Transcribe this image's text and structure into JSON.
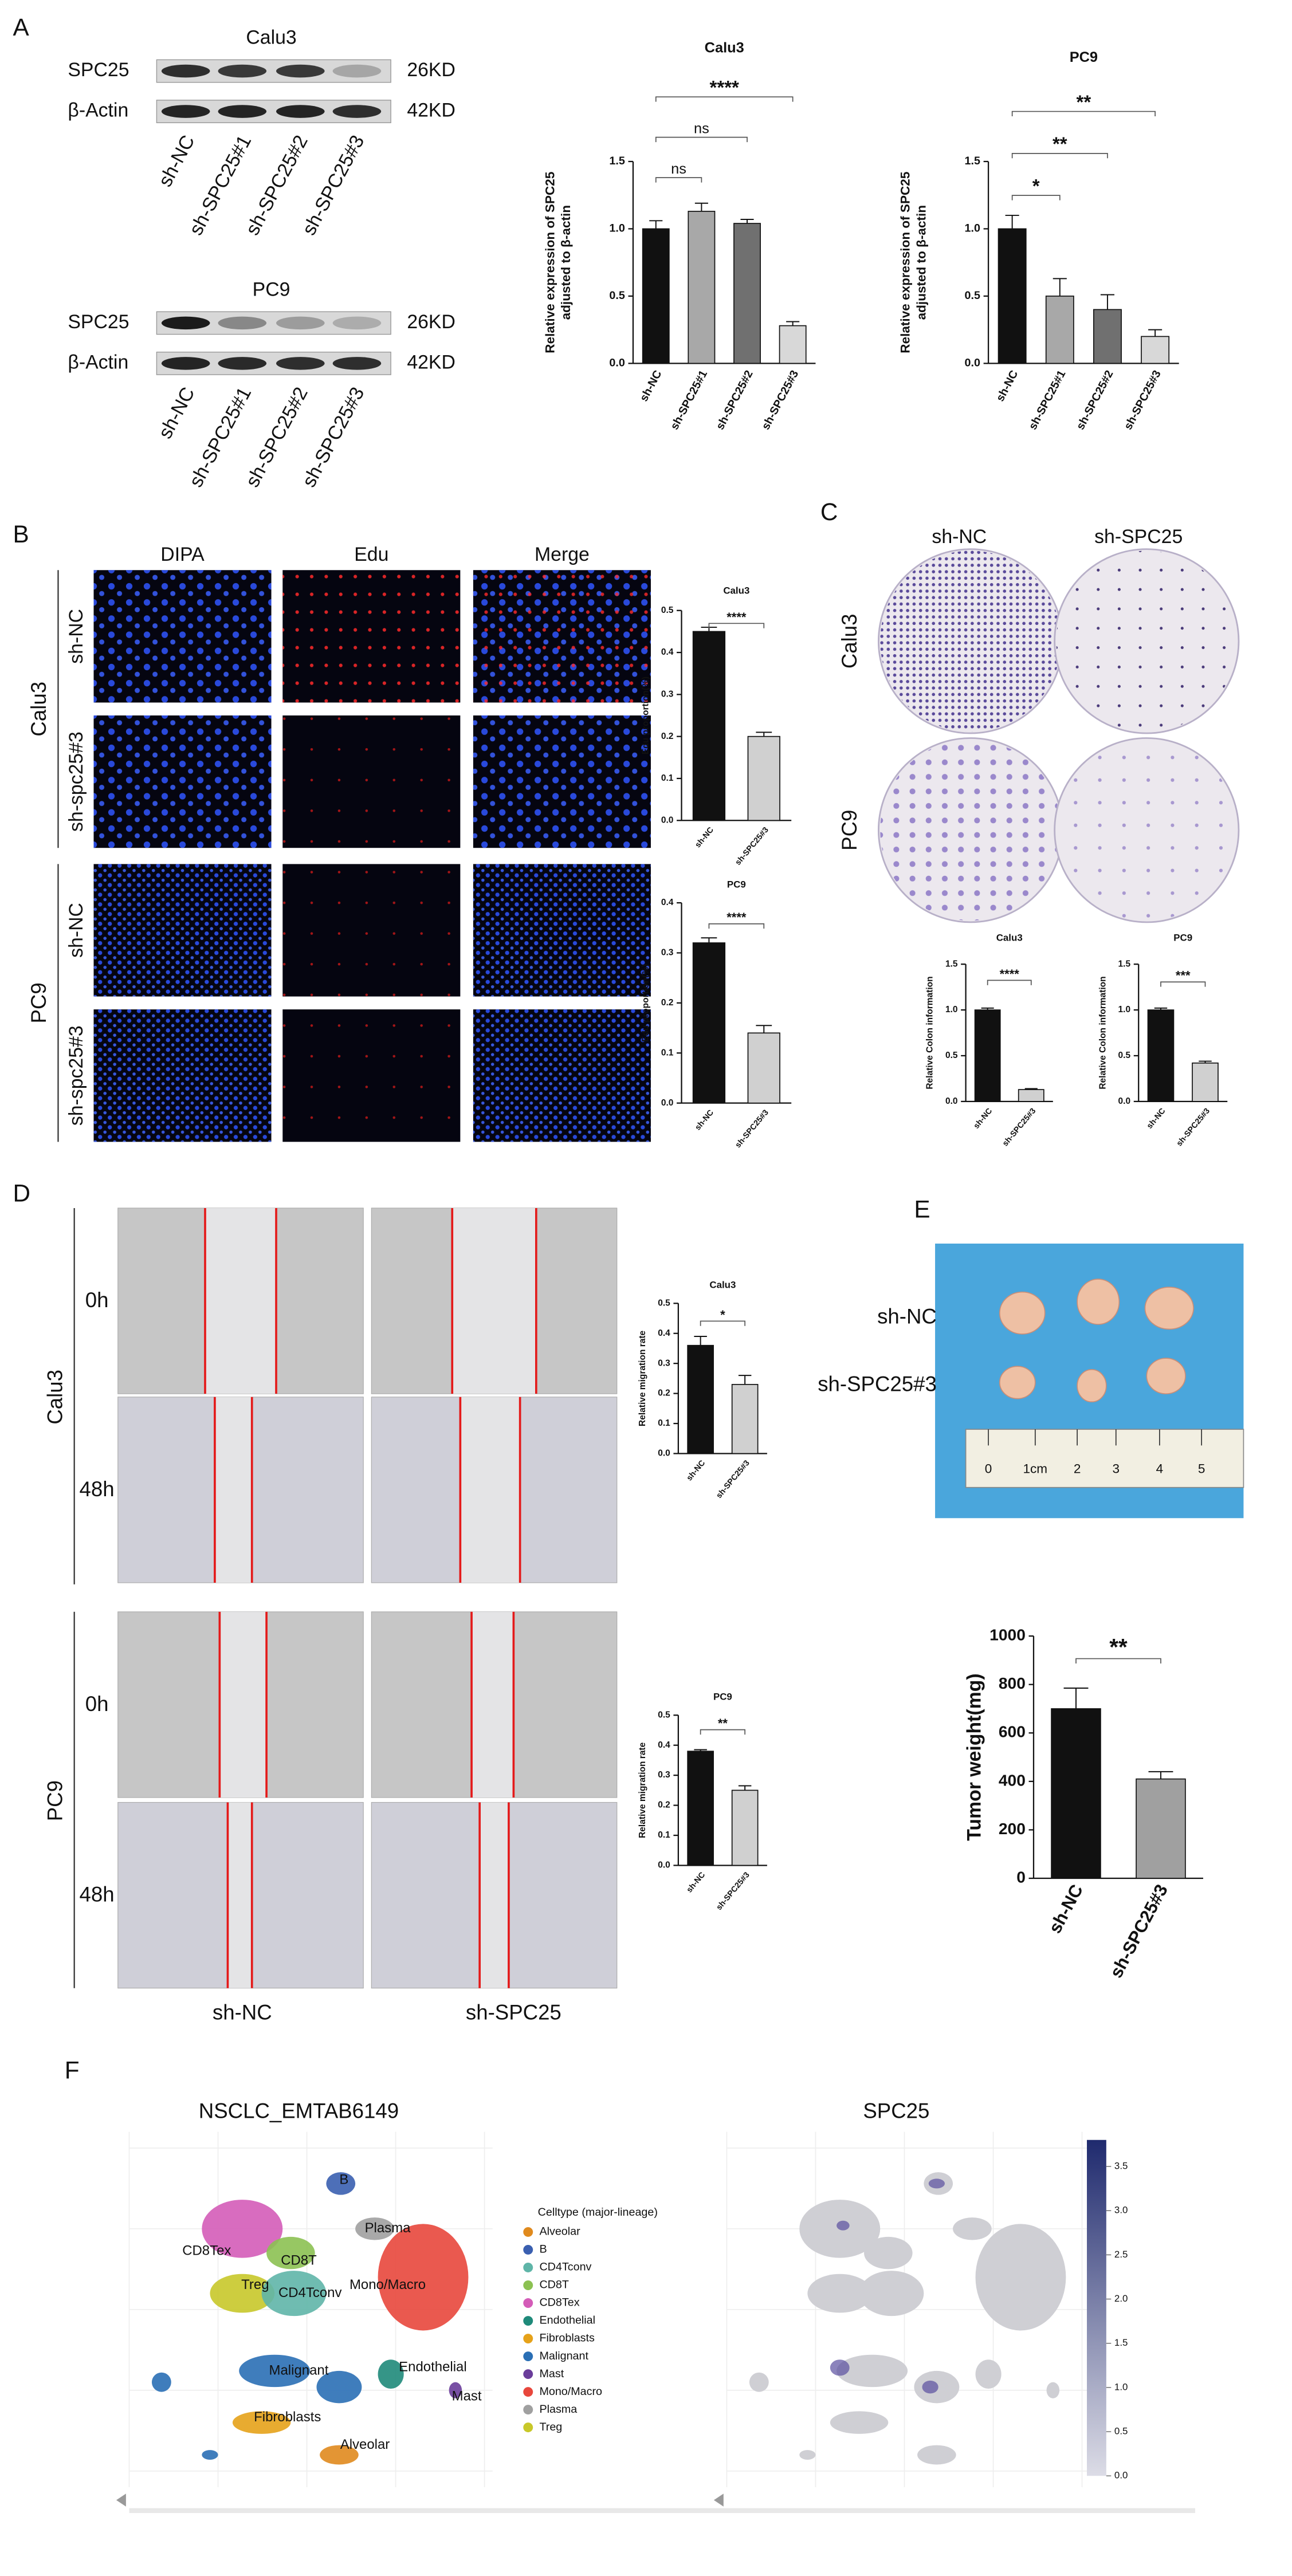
{
  "panel_labels": [
    "A",
    "B",
    "C",
    "D",
    "E",
    "F"
  ],
  "western_blot": [
    {
      "title": "Calu3",
      "bands": [
        {
          "protein": "SPC25",
          "size": "26KD"
        },
        {
          "protein": "β-Actin",
          "size": "42KD"
        }
      ],
      "lanes": [
        "sh-NC",
        "sh-SPC25#1",
        "sh-SPC25#2",
        "sh-SPC25#3"
      ]
    },
    {
      "title": "PC9",
      "bands": [
        {
          "protein": "SPC25",
          "size": "26KD"
        },
        {
          "protein": "β-Actin",
          "size": "42KD"
        }
      ],
      "lanes": [
        "sh-NC",
        "sh-SPC25#1",
        "sh-SPC25#2",
        "sh-SPC25#3"
      ]
    }
  ],
  "edu_imaging": {
    "channels": [
      "DIPA",
      "Edu",
      "Merge"
    ],
    "groups": [
      {
        "name": "Calu3",
        "rows": [
          "sh-NC",
          "sh-spc25#3"
        ]
      },
      {
        "name": "PC9",
        "rows": [
          "sh-NC",
          "sh-spc25#3"
        ]
      }
    ]
  },
  "colony_assay": {
    "columns": [
      "sh-NC",
      "sh-SPC25"
    ],
    "rows": [
      "Calu3",
      "PC9"
    ]
  },
  "wound_healing": {
    "columns": [
      "sh-NC",
      "sh-SPC25"
    ],
    "groups": [
      {
        "name": "Calu3",
        "rows": [
          "0h",
          "48h"
        ]
      },
      {
        "name": "PC9",
        "rows": [
          "0h",
          "48h"
        ]
      }
    ]
  },
  "xenograft": {
    "rows": [
      "sh-NC",
      "sh-SPC25#3"
    ],
    "ruler": [
      "0",
      "1cm",
      "2",
      "3",
      "4",
      "5"
    ]
  },
  "single_cell": {
    "left_title": "NSCLC_EMTAB6149",
    "right_title": "SPC25",
    "legend_title": "Celltype (major-lineage)",
    "celltypes": [
      {
        "name": "Alveolar",
        "color": "#e08a1e"
      },
      {
        "name": "B",
        "color": "#3a5fb0"
      },
      {
        "name": "CD4Tconv",
        "color": "#5fb5a8"
      },
      {
        "name": "CD8T",
        "color": "#8cc152"
      },
      {
        "name": "CD8Tex",
        "color": "#d45cb8"
      },
      {
        "name": "Endothelial",
        "color": "#1f8a7a"
      },
      {
        "name": "Fibroblasts",
        "color": "#e6a21a"
      },
      {
        "name": "Malignant",
        "color": "#2a6fb5"
      },
      {
        "name": "Mast",
        "color": "#6a3d9a"
      },
      {
        "name": "Mono/Macro",
        "color": "#e8473c"
      },
      {
        "name": "Plasma",
        "color": "#a0a0a0"
      },
      {
        "name": "Treg",
        "color": "#c8c82a"
      }
    ],
    "cluster_labels": [
      "B",
      "Plasma",
      "CD8Tex",
      "CD8T",
      "Treg",
      "CD4Tconv",
      "Mono/Macro",
      "Malignant",
      "Endothelial",
      "Mast",
      "Fibroblasts",
      "Alveolar"
    ],
    "colorbar": {
      "lim": [
        0,
        3.8
      ],
      "ticks": [
        {
          "value": 0,
          "label": "0.0"
        },
        0.5,
        {
          "value": 1,
          "label": "1.0"
        },
        1.5,
        {
          "value": 2,
          "label": "2.0"
        },
        2.5,
        {
          "value": 3,
          "label": "3.0"
        },
        3.5
      ]
    }
  },
  "chart_data": [
    {
      "type": "bar",
      "title": "Calu3",
      "ylabel": [
        "Relative expression of SPC25",
        "adjusted to β-actin"
      ],
      "categories": [
        "sh-NC",
        "sh-SPC25#1",
        "sh-SPC25#2",
        "sh-SPC25#3"
      ],
      "values": [
        1.0,
        1.13,
        1.04,
        0.28
      ],
      "errors": [
        0.06,
        0.06,
        0.03,
        0.03
      ],
      "colors": [
        "#111111",
        "#a8a8a8",
        "#707070",
        "#d8d8d8"
      ],
      "ylim": [
        0,
        1.5
      ],
      "yticks": [
        {
          "value": 0,
          "label": "0.0"
        },
        0.5,
        {
          "value": 1,
          "label": "1.0"
        },
        1.5
      ],
      "annotations": [
        {
          "text": "ns",
          "between": [
            "sh-NC",
            "sh-SPC25#1"
          ]
        },
        {
          "text": "ns",
          "between": [
            "sh-NC",
            "sh-SPC25#2"
          ]
        },
        {
          "text": "****",
          "between": [
            "sh-NC",
            "sh-SPC25#3"
          ]
        }
      ]
    },
    {
      "type": "bar",
      "title": "PC9",
      "ylabel": [
        "Relative expression of SPC25",
        "adjusted to β-actin"
      ],
      "categories": [
        "sh-NC",
        "sh-SPC25#1",
        "sh-SPC25#2",
        "sh-SPC25#3"
      ],
      "values": [
        1.0,
        0.5,
        0.4,
        0.2
      ],
      "errors": [
        0.1,
        0.13,
        0.11,
        0.05
      ],
      "colors": [
        "#111111",
        "#a8a8a8",
        "#707070",
        "#d8d8d8"
      ],
      "ylim": [
        0,
        1.5
      ],
      "yticks": [
        {
          "value": 0,
          "label": "0.0"
        },
        0.5,
        {
          "value": 1,
          "label": "1.0"
        },
        1.5
      ],
      "annotations": [
        {
          "text": "*",
          "between": [
            "sh-NC",
            "sh-SPC25#1"
          ]
        },
        {
          "text": "**",
          "between": [
            "sh-NC",
            "sh-SPC25#2"
          ]
        },
        {
          "text": "**",
          "between": [
            "sh-NC",
            "sh-SPC25#3"
          ]
        }
      ]
    },
    {
      "type": "bar",
      "title": "Calu3",
      "ylabel": [
        "Edu proportion(%)"
      ],
      "categories": [
        "sh-NC",
        "sh-SPC25#3"
      ],
      "values": [
        0.45,
        0.2
      ],
      "errors": [
        0.01,
        0.01
      ],
      "colors": [
        "#111111",
        "#d0d0d0"
      ],
      "ylim": [
        0,
        0.5
      ],
      "yticks": [
        {
          "value": 0,
          "label": "0.0"
        },
        0.1,
        0.2,
        0.3,
        0.4,
        0.5
      ],
      "annotations": [
        {
          "text": "****",
          "between": [
            "sh-NC",
            "sh-SPC25#3"
          ]
        }
      ]
    },
    {
      "type": "bar",
      "title": "PC9",
      "ylabel": [
        "Edu proportion(%)"
      ],
      "categories": [
        "sh-NC",
        "sh-SPC25#3"
      ],
      "values": [
        0.32,
        0.14
      ],
      "errors": [
        0.01,
        0.015
      ],
      "colors": [
        "#111111",
        "#d0d0d0"
      ],
      "ylim": [
        0,
        0.4
      ],
      "yticks": [
        {
          "value": 0,
          "label": "0.0"
        },
        0.1,
        0.2,
        0.3,
        0.4
      ],
      "annotations": [
        {
          "text": "****",
          "between": [
            "sh-NC",
            "sh-SPC25#3"
          ]
        }
      ]
    },
    {
      "type": "bar",
      "title": "Calu3",
      "ylabel": [
        "Relative Colon information"
      ],
      "categories": [
        "sh-NC",
        "sh-SPC25#3"
      ],
      "values": [
        1.0,
        0.13
      ],
      "errors": [
        0.02,
        0.01
      ],
      "colors": [
        "#111111",
        "#d0d0d0"
      ],
      "ylim": [
        0,
        1.5
      ],
      "yticks": [
        {
          "value": 0,
          "label": "0.0"
        },
        0.5,
        {
          "value": 1,
          "label": "1.0"
        },
        1.5
      ],
      "annotations": [
        {
          "text": "****",
          "between": [
            "sh-NC",
            "sh-SPC25#3"
          ]
        }
      ]
    },
    {
      "type": "bar",
      "title": "PC9",
      "ylabel": [
        "Relative Colon information"
      ],
      "categories": [
        "sh-NC",
        "sh-SPC25#3"
      ],
      "values": [
        1.0,
        0.42
      ],
      "errors": [
        0.02,
        0.02
      ],
      "colors": [
        "#111111",
        "#d0d0d0"
      ],
      "ylim": [
        0,
        1.5
      ],
      "yticks": [
        {
          "value": 0,
          "label": "0.0"
        },
        0.5,
        {
          "value": 1,
          "label": "1.0"
        },
        1.5
      ],
      "annotations": [
        {
          "text": "***",
          "between": [
            "sh-NC",
            "sh-SPC25#3"
          ]
        }
      ]
    },
    {
      "type": "bar",
      "title": "Calu3",
      "ylabel": [
        "Relative migration rate"
      ],
      "categories": [
        "sh-NC",
        "sh-SPC25#3"
      ],
      "values": [
        0.36,
        0.23
      ],
      "errors": [
        0.03,
        0.03
      ],
      "colors": [
        "#111111",
        "#d0d0d0"
      ],
      "ylim": [
        0,
        0.5
      ],
      "yticks": [
        {
          "value": 0,
          "label": "0.0"
        },
        0.1,
        0.2,
        0.3,
        0.4,
        0.5
      ],
      "annotations": [
        {
          "text": "*",
          "between": [
            "sh-NC",
            "sh-SPC25#3"
          ]
        }
      ]
    },
    {
      "type": "bar",
      "title": "PC9",
      "ylabel": [
        "Relative migration rate"
      ],
      "categories": [
        "sh-NC",
        "sh-SPC25#3"
      ],
      "values": [
        0.38,
        0.25
      ],
      "errors": [
        0.005,
        0.015
      ],
      "colors": [
        "#111111",
        "#d0d0d0"
      ],
      "ylim": [
        0,
        0.5
      ],
      "yticks": [
        {
          "value": 0,
          "label": "0.0"
        },
        0.1,
        0.2,
        0.3,
        0.4,
        0.5
      ],
      "annotations": [
        {
          "text": "**",
          "between": [
            "sh-NC",
            "sh-SPC25#3"
          ]
        }
      ]
    },
    {
      "type": "bar",
      "ylabel": [
        "Tumor weight(mg)"
      ],
      "categories": [
        "sh-NC",
        "sh-SPC25#3"
      ],
      "values": [
        700,
        410
      ],
      "errors": [
        85,
        30
      ],
      "colors": [
        "#111111",
        "#a0a0a0"
      ],
      "ylim": [
        0,
        1000
      ],
      "yticks": [
        0,
        200,
        400,
        600,
        800,
        1000
      ],
      "annotations": [
        {
          "text": "**",
          "between": [
            "sh-NC",
            "sh-SPC25#3"
          ]
        }
      ]
    }
  ]
}
